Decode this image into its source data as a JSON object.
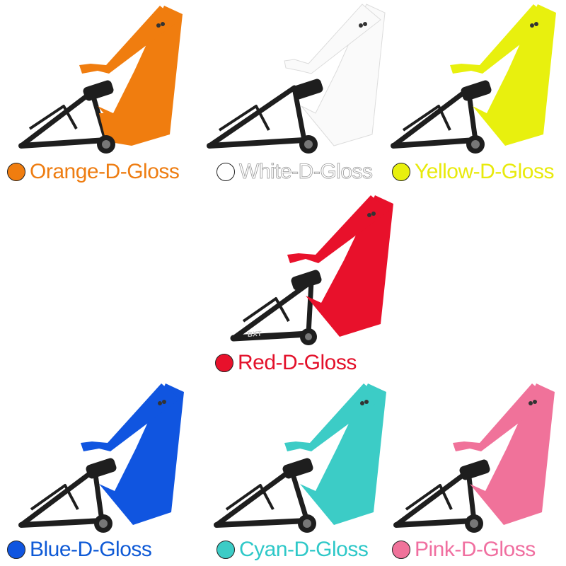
{
  "swatches": [
    {
      "id": "orange",
      "label": "Orange-D-Gloss",
      "color": "#f07d0f",
      "text_color": "#ee7d12"
    },
    {
      "id": "white",
      "label": "White-D-Gloss",
      "color": "#ffffff",
      "text_color": "#ffffff"
    },
    {
      "id": "yellow",
      "label": "Yellow-D-Gloss",
      "color": "#e8f00e",
      "text_color": "#e8ea0c"
    },
    {
      "id": "red",
      "label": "Red-D-Gloss",
      "color": "#e8112b",
      "text_color": "#e3102a"
    },
    {
      "id": "blue",
      "label": "Blue-D-Gloss",
      "color": "#1055e0",
      "text_color": "#0f5ad6"
    },
    {
      "id": "cyan",
      "label": "Cyan-D-Gloss",
      "color": "#3cccc6",
      "text_color": "#2ec8c8"
    },
    {
      "id": "pink",
      "label": "Pink-D-Gloss",
      "color": "#f0729a",
      "text_color": "#f06fa0"
    }
  ],
  "rear_triangle_color": "#1e1e1e",
  "downtube_decal": "BXT"
}
